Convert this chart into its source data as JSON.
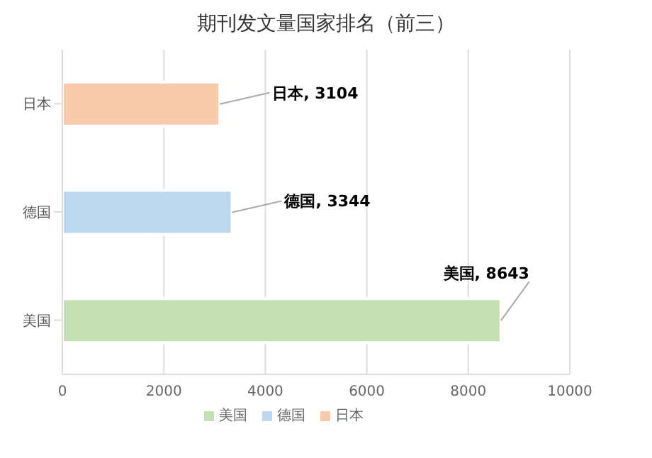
{
  "chart_data": {
    "type": "bar",
    "orientation": "horizontal",
    "stacked": true,
    "title": "期刊发文量国家排名（前三）",
    "categories": [
      "日本",
      "德国",
      "美国"
    ],
    "series": [
      {
        "name": "美国",
        "color": "#c5e0b4",
        "values": [
          null,
          null,
          8643
        ],
        "value_labels": [
          null,
          null,
          "美国, 8643"
        ]
      },
      {
        "name": "德国",
        "color": "#bdd7ee",
        "values": [
          null,
          3344,
          null
        ],
        "value_labels": [
          null,
          "德国, 3344",
          null
        ]
      },
      {
        "name": "日本",
        "color": "#f8cbad",
        "values": [
          3104,
          null,
          null
        ],
        "value_labels": [
          "日本, 3104",
          null,
          null
        ]
      }
    ],
    "xlim": [
      0,
      10000
    ],
    "xticks": [
      0,
      2000,
      4000,
      6000,
      8000,
      10000
    ],
    "grid": "x",
    "legend": "bottom"
  }
}
